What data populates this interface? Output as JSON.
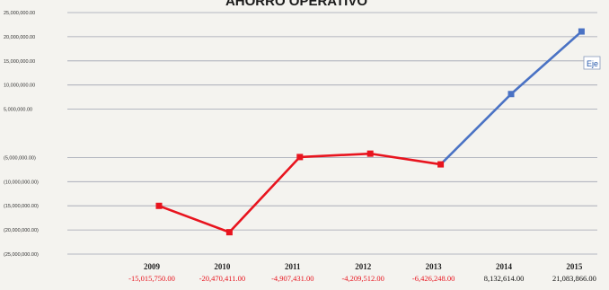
{
  "chart_data": {
    "type": "line",
    "title": "AHORRO OPERATIVO",
    "xlabel": "",
    "ylabel": "",
    "ylim": [
      -25000000,
      25000000
    ],
    "grid": true,
    "legend": "none",
    "y_tick_labels": [
      "25,000,000.00",
      "20,000,000.00",
      "15,000,000.00",
      "10,000,000.00",
      "5,000,000.00",
      "(5,000,000.00)",
      "(10,000,000.00)",
      "(15,000,000.00)",
      "(20,000,000.00)",
      "(25,000,000.00)"
    ],
    "categories": [
      "2009",
      "2010",
      "2011",
      "2012",
      "2013",
      "2014",
      "2015"
    ],
    "values": [
      -15015750,
      -20470411,
      -4907431,
      -4209512,
      -6426248,
      8132614,
      21083866
    ],
    "data_labels": [
      "-15,015,750.00",
      "-20,470,411.00",
      "-4,907,431.00",
      "-4,209,512.00",
      "-6,426,248.00",
      "8,132,614.00",
      "21,083,866.00"
    ],
    "segment_colors": {
      "negative": "#e8141e",
      "positive": "#4a72c4"
    },
    "label_colors": {
      "negative": "#e8141e",
      "positive": "#111111"
    },
    "tooltip_text": "Eje"
  }
}
